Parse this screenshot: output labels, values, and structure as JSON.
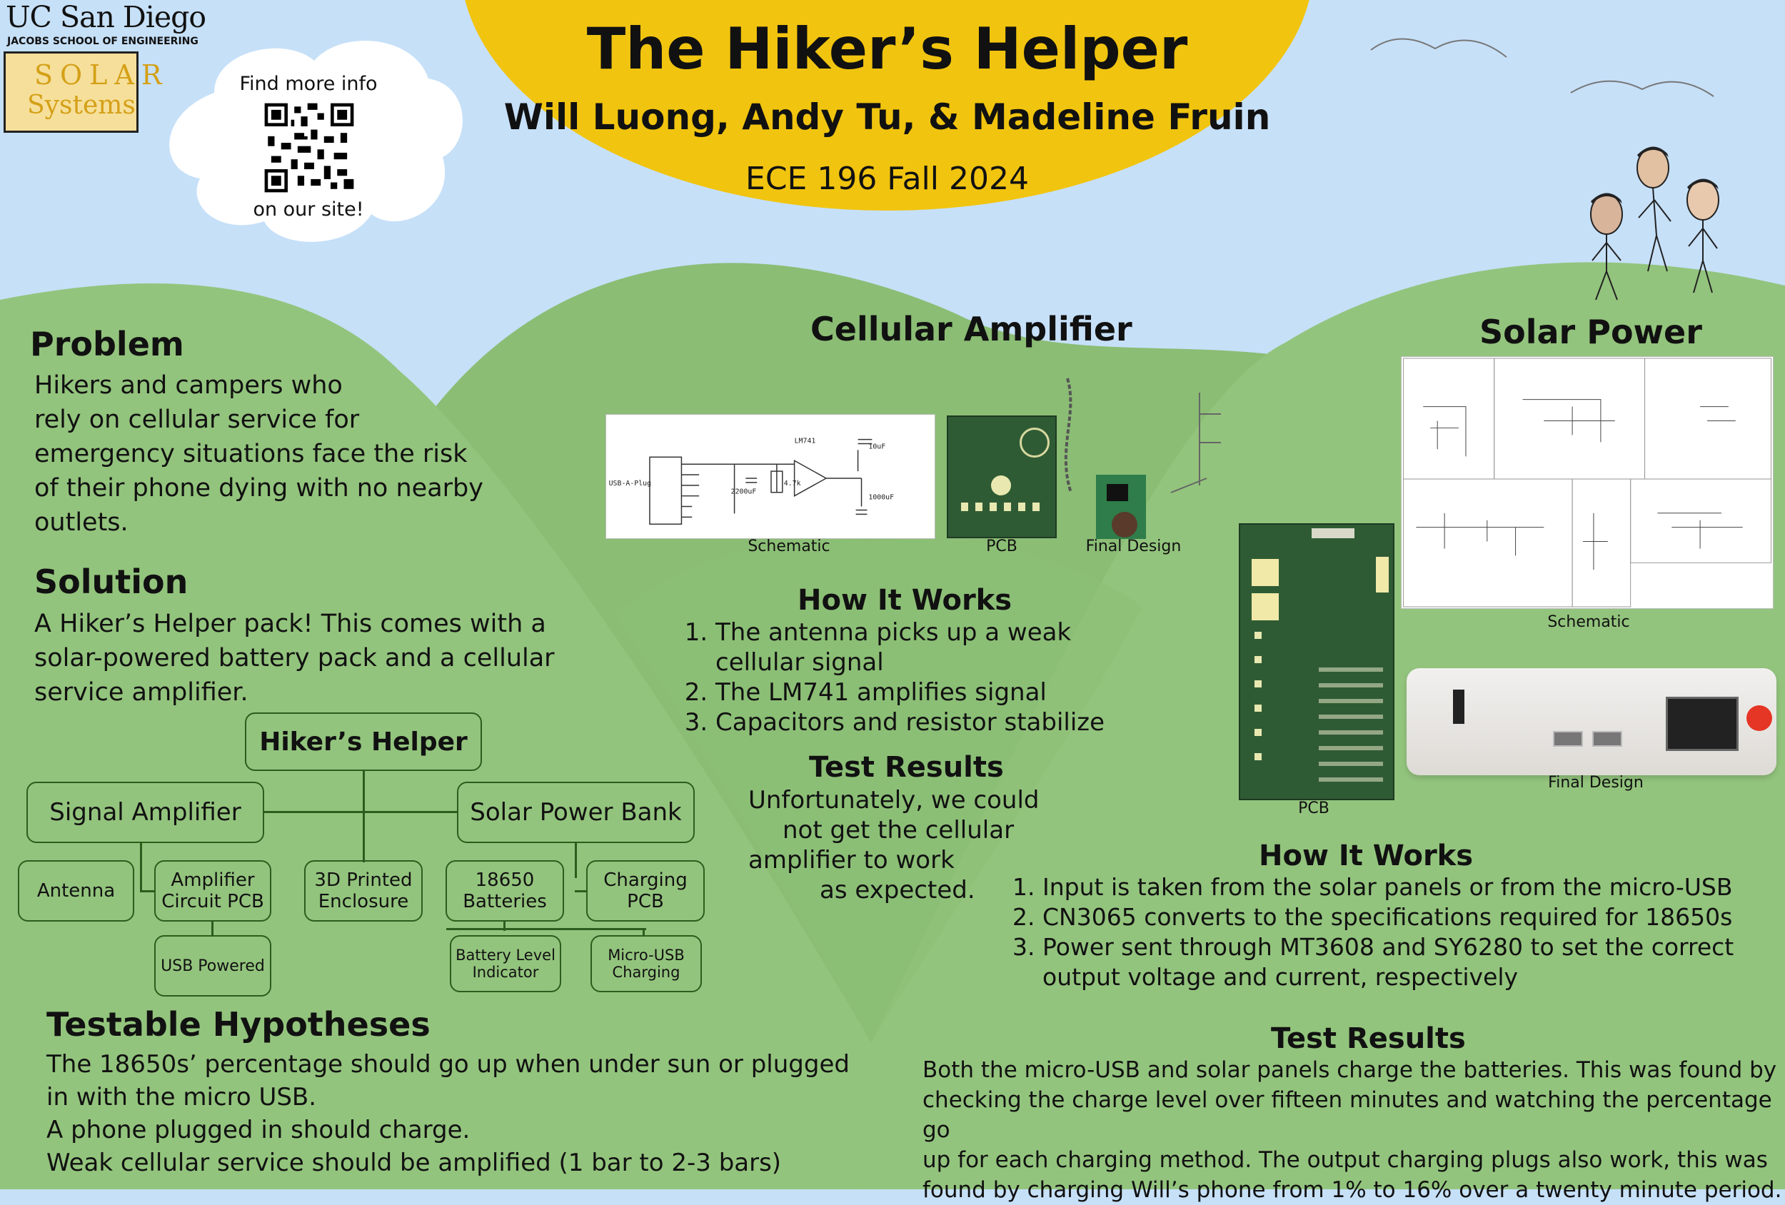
{
  "header": {
    "title": "The Hiker’s Helper",
    "authors": "Will Luong, Andy Tu, & Madeline Fruin",
    "course": "ECE 196 Fall 2024"
  },
  "logos": {
    "ucsd": "UC San Diego",
    "jacobs": "JACOBS SCHOOL OF ENGINEERING",
    "team_line1": "SOLAR",
    "team_line2": "Systems"
  },
  "cloud": {
    "top": "Find more info",
    "bottom": "on our site!"
  },
  "problem": {
    "heading": "Problem",
    "lines": [
      "Hikers and campers who",
      "rely on cellular service for",
      "emergency situations face the risk",
      "of their phone dying with no nearby",
      "outlets."
    ]
  },
  "solution": {
    "heading": "Solution",
    "lines": [
      "A Hiker’s Helper pack! This comes with a",
      "solar-powered battery pack and a cellular",
      "service amplifier."
    ]
  },
  "tree": {
    "root": "Hiker’s Helper",
    "signal": "Signal Amplifier",
    "solar": "Solar Power Bank",
    "enclosure": [
      "3D Printed",
      "Enclosure"
    ],
    "antenna": "Antenna",
    "amp_pcb": [
      "Amplifier",
      "Circuit PCB"
    ],
    "usb_powered": "USB Powered",
    "batteries": [
      "18650",
      "Batteries"
    ],
    "charging_pcb": [
      "Charging",
      "PCB"
    ],
    "battery_level": [
      "Battery Level",
      "Indicator"
    ],
    "micro_usb": [
      "Micro-USB",
      "Charging"
    ]
  },
  "hypotheses": {
    "heading": "Testable Hypotheses",
    "lines": [
      "The 18650s’ percentage should go up when under sun or plugged",
      "in with the micro USB.",
      "A phone plugged in should charge.",
      "Weak cellular service should be amplified (1 bar to 2-3 bars)"
    ]
  },
  "cellular": {
    "heading": "Cellular Amplifier",
    "captions": {
      "schematic": "Schematic",
      "pcb": "PCB",
      "final": "Final Design"
    },
    "schematic_labels": {
      "connector": "USB-A-Plug",
      "amp": "LM741",
      "c1": "2200uF",
      "r1": "4.7k",
      "c3": "1000uF",
      "c2": "10uF"
    },
    "how_heading": "How It Works",
    "how": [
      "The antenna picks up a weak cellular signal",
      "The LM741 amplifies signal",
      "Capacitors and resistor stabilize"
    ],
    "test_heading": "Test Results",
    "test_lines": [
      "Unfortunately, we could",
      "not get the cellular",
      "amplifier to work",
      "as expected."
    ]
  },
  "solar_bank": {
    "heading": "Solar Power Bank",
    "captions": {
      "schematic": "Schematic",
      "pcb": "PCB",
      "final": "Final Design"
    },
    "how_heading": "How It Works",
    "how": [
      "Input is taken from the solar panels or from the micro-USB",
      "CN3065 converts to the specifications required for 18650s",
      "Power sent through MT3608 and SY6280 to set the correct output voltage and current, respectively"
    ],
    "test_heading": "Test Results",
    "test_lines": [
      "Both the micro-USB and solar panels charge the batteries. This was found by",
      "checking the charge level over fifteen minutes and watching the percentage go",
      "up for each charging method. The output charging plugs also work, this was",
      "found by charging Will’s phone from 1% to 16% over a twenty minute period."
    ]
  },
  "colors": {
    "sky": "#c6e0f8",
    "sun": "#f1c40f",
    "hill": "#93c47d",
    "hill_dark": "#8bbd75",
    "box_line": "#2e5c1e"
  }
}
